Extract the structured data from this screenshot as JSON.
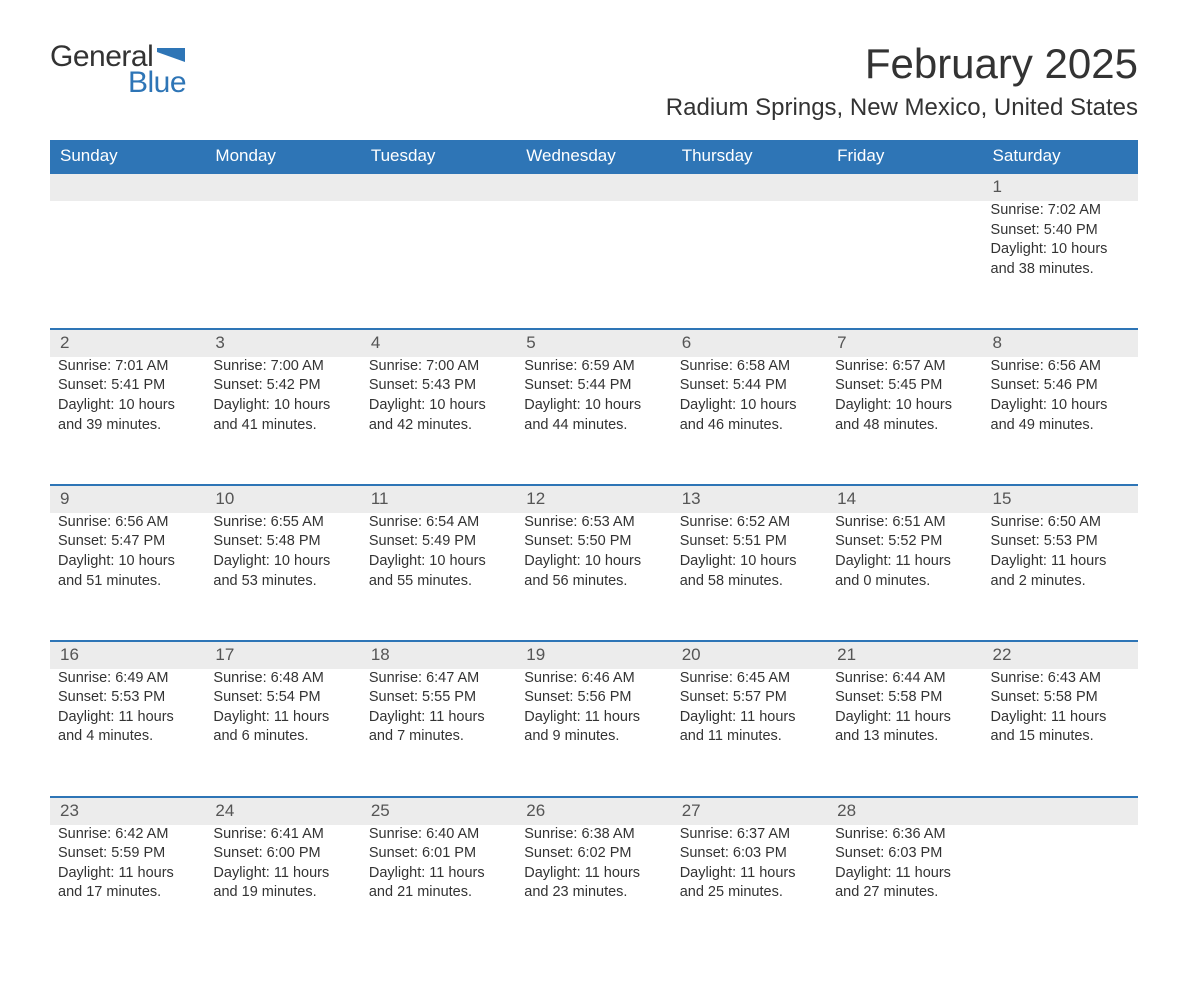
{
  "brand": {
    "word1": "General",
    "word2": "Blue",
    "word1_color": "#333333",
    "word2_color": "#2e75b6",
    "flag_color": "#2e75b6"
  },
  "title": "February 2025",
  "location": "Radium Springs, New Mexico, United States",
  "colors": {
    "header_bg": "#2e75b6",
    "header_text": "#ffffff",
    "daynum_bg": "#ececec",
    "daynum_border": "#2e75b6",
    "text": "#333333",
    "page_bg": "#ffffff"
  },
  "fonts": {
    "title_size_pt": 32,
    "location_size_pt": 18,
    "header_size_pt": 13,
    "body_size_pt": 11
  },
  "days_of_week": [
    "Sunday",
    "Monday",
    "Tuesday",
    "Wednesday",
    "Thursday",
    "Friday",
    "Saturday"
  ],
  "grid_rows": 5,
  "grid_cols": 7,
  "cells": [
    {
      "row": 0,
      "col": 0,
      "day": null
    },
    {
      "row": 0,
      "col": 1,
      "day": null
    },
    {
      "row": 0,
      "col": 2,
      "day": null
    },
    {
      "row": 0,
      "col": 3,
      "day": null
    },
    {
      "row": 0,
      "col": 4,
      "day": null
    },
    {
      "row": 0,
      "col": 5,
      "day": null
    },
    {
      "row": 0,
      "col": 6,
      "day": 1,
      "sunrise": "7:02 AM",
      "sunset": "5:40 PM",
      "daylight_h": 10,
      "daylight_m": 38
    },
    {
      "row": 1,
      "col": 0,
      "day": 2,
      "sunrise": "7:01 AM",
      "sunset": "5:41 PM",
      "daylight_h": 10,
      "daylight_m": 39
    },
    {
      "row": 1,
      "col": 1,
      "day": 3,
      "sunrise": "7:00 AM",
      "sunset": "5:42 PM",
      "daylight_h": 10,
      "daylight_m": 41
    },
    {
      "row": 1,
      "col": 2,
      "day": 4,
      "sunrise": "7:00 AM",
      "sunset": "5:43 PM",
      "daylight_h": 10,
      "daylight_m": 42
    },
    {
      "row": 1,
      "col": 3,
      "day": 5,
      "sunrise": "6:59 AM",
      "sunset": "5:44 PM",
      "daylight_h": 10,
      "daylight_m": 44
    },
    {
      "row": 1,
      "col": 4,
      "day": 6,
      "sunrise": "6:58 AM",
      "sunset": "5:44 PM",
      "daylight_h": 10,
      "daylight_m": 46
    },
    {
      "row": 1,
      "col": 5,
      "day": 7,
      "sunrise": "6:57 AM",
      "sunset": "5:45 PM",
      "daylight_h": 10,
      "daylight_m": 48
    },
    {
      "row": 1,
      "col": 6,
      "day": 8,
      "sunrise": "6:56 AM",
      "sunset": "5:46 PM",
      "daylight_h": 10,
      "daylight_m": 49
    },
    {
      "row": 2,
      "col": 0,
      "day": 9,
      "sunrise": "6:56 AM",
      "sunset": "5:47 PM",
      "daylight_h": 10,
      "daylight_m": 51
    },
    {
      "row": 2,
      "col": 1,
      "day": 10,
      "sunrise": "6:55 AM",
      "sunset": "5:48 PM",
      "daylight_h": 10,
      "daylight_m": 53
    },
    {
      "row": 2,
      "col": 2,
      "day": 11,
      "sunrise": "6:54 AM",
      "sunset": "5:49 PM",
      "daylight_h": 10,
      "daylight_m": 55
    },
    {
      "row": 2,
      "col": 3,
      "day": 12,
      "sunrise": "6:53 AM",
      "sunset": "5:50 PM",
      "daylight_h": 10,
      "daylight_m": 56
    },
    {
      "row": 2,
      "col": 4,
      "day": 13,
      "sunrise": "6:52 AM",
      "sunset": "5:51 PM",
      "daylight_h": 10,
      "daylight_m": 58
    },
    {
      "row": 2,
      "col": 5,
      "day": 14,
      "sunrise": "6:51 AM",
      "sunset": "5:52 PM",
      "daylight_h": 11,
      "daylight_m": 0
    },
    {
      "row": 2,
      "col": 6,
      "day": 15,
      "sunrise": "6:50 AM",
      "sunset": "5:53 PM",
      "daylight_h": 11,
      "daylight_m": 2
    },
    {
      "row": 3,
      "col": 0,
      "day": 16,
      "sunrise": "6:49 AM",
      "sunset": "5:53 PM",
      "daylight_h": 11,
      "daylight_m": 4
    },
    {
      "row": 3,
      "col": 1,
      "day": 17,
      "sunrise": "6:48 AM",
      "sunset": "5:54 PM",
      "daylight_h": 11,
      "daylight_m": 6
    },
    {
      "row": 3,
      "col": 2,
      "day": 18,
      "sunrise": "6:47 AM",
      "sunset": "5:55 PM",
      "daylight_h": 11,
      "daylight_m": 7
    },
    {
      "row": 3,
      "col": 3,
      "day": 19,
      "sunrise": "6:46 AM",
      "sunset": "5:56 PM",
      "daylight_h": 11,
      "daylight_m": 9
    },
    {
      "row": 3,
      "col": 4,
      "day": 20,
      "sunrise": "6:45 AM",
      "sunset": "5:57 PM",
      "daylight_h": 11,
      "daylight_m": 11
    },
    {
      "row": 3,
      "col": 5,
      "day": 21,
      "sunrise": "6:44 AM",
      "sunset": "5:58 PM",
      "daylight_h": 11,
      "daylight_m": 13
    },
    {
      "row": 3,
      "col": 6,
      "day": 22,
      "sunrise": "6:43 AM",
      "sunset": "5:58 PM",
      "daylight_h": 11,
      "daylight_m": 15
    },
    {
      "row": 4,
      "col": 0,
      "day": 23,
      "sunrise": "6:42 AM",
      "sunset": "5:59 PM",
      "daylight_h": 11,
      "daylight_m": 17
    },
    {
      "row": 4,
      "col": 1,
      "day": 24,
      "sunrise": "6:41 AM",
      "sunset": "6:00 PM",
      "daylight_h": 11,
      "daylight_m": 19
    },
    {
      "row": 4,
      "col": 2,
      "day": 25,
      "sunrise": "6:40 AM",
      "sunset": "6:01 PM",
      "daylight_h": 11,
      "daylight_m": 21
    },
    {
      "row": 4,
      "col": 3,
      "day": 26,
      "sunrise": "6:38 AM",
      "sunset": "6:02 PM",
      "daylight_h": 11,
      "daylight_m": 23
    },
    {
      "row": 4,
      "col": 4,
      "day": 27,
      "sunrise": "6:37 AM",
      "sunset": "6:03 PM",
      "daylight_h": 11,
      "daylight_m": 25
    },
    {
      "row": 4,
      "col": 5,
      "day": 28,
      "sunrise": "6:36 AM",
      "sunset": "6:03 PM",
      "daylight_h": 11,
      "daylight_m": 27
    },
    {
      "row": 4,
      "col": 6,
      "day": null
    }
  ],
  "labels": {
    "sunrise": "Sunrise:",
    "sunset": "Sunset:",
    "daylight_prefix": "Daylight:",
    "hours_word": "hours",
    "and_word": "and",
    "minutes_word": "minutes."
  }
}
